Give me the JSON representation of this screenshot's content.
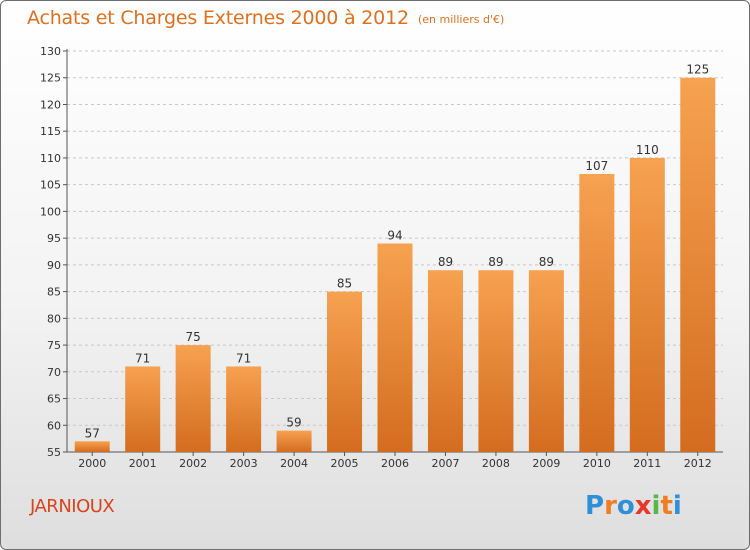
{
  "header": {
    "title": "Achats et Charges Externes 2000 à 2012",
    "subtitle": "(en milliers d'€)"
  },
  "footer": {
    "commune": "JARNIOUX",
    "logo": {
      "letters": [
        "P",
        "r",
        "o",
        "x",
        "i",
        "t",
        "i"
      ],
      "colors": [
        "#2f8fd8",
        "#f07d22",
        "#2f8fd8",
        "#e8362a",
        "#55b848",
        "#f07d22",
        "#2f8fd8"
      ]
    }
  },
  "chart_data": {
    "type": "bar",
    "categories": [
      "2000",
      "2001",
      "2002",
      "2003",
      "2004",
      "2005",
      "2006",
      "2007",
      "2008",
      "2009",
      "2010",
      "2011",
      "2012"
    ],
    "values": [
      57,
      71,
      75,
      71,
      59,
      85,
      94,
      89,
      89,
      89,
      107,
      110,
      125
    ],
    "data_labels": [
      "57",
      "71",
      "75",
      "71",
      "59",
      "85",
      "94",
      "89",
      "89",
      "89",
      "107",
      "110",
      "125"
    ],
    "ylim": [
      55,
      130
    ],
    "yticks": [
      55,
      60,
      65,
      70,
      75,
      80,
      85,
      90,
      95,
      100,
      105,
      110,
      115,
      120,
      125,
      130
    ],
    "grid": true,
    "bar_color": "#f29a45",
    "bar_color_dark": "#d2691e"
  }
}
